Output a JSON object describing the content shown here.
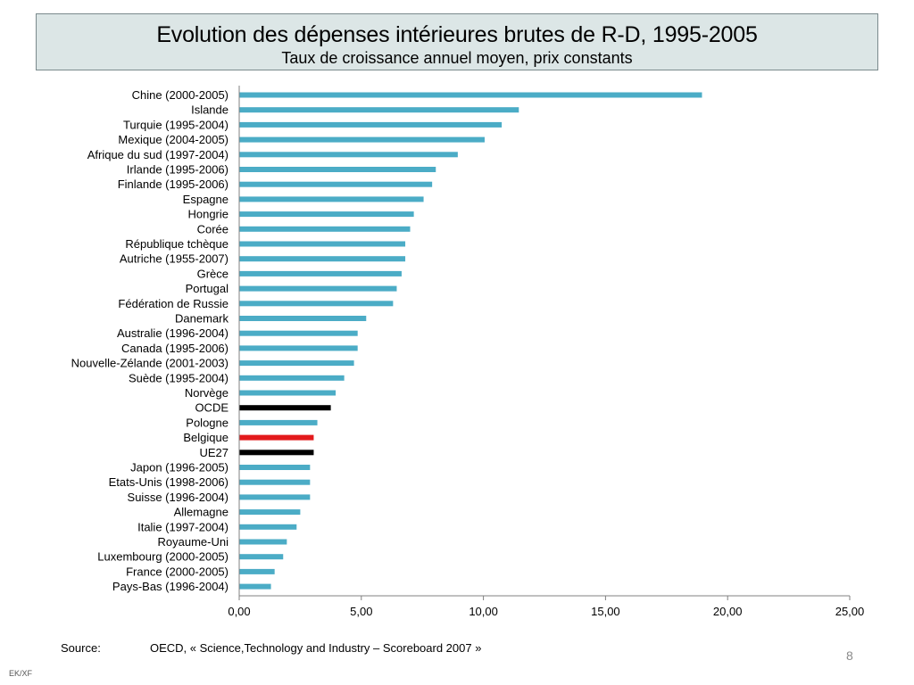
{
  "chart_data": {
    "type": "bar",
    "orientation": "horizontal",
    "title": "Evolution des dépenses intérieures brutes de R-D, 1995-2005",
    "subtitle": "Taux de croissance annuel moyen, prix constants",
    "categories": [
      "Chine (2000-2005)",
      "Islande",
      "Turquie (1995-2004)",
      "Mexique (2004-2005)",
      "Afrique du sud (1997-2004)",
      "Irlande (1995-2006)",
      "Finlande (1995-2006)",
      "Espagne",
      "Hongrie",
      "Corée",
      "République tchèque",
      "Autriche (1955-2007)",
      "Grèce",
      "Portugal",
      "Fédération de Russie",
      "Danemark",
      "Australie (1996-2004)",
      "Canada (1995-2006)",
      "Nouvelle-Zélande (2001-2003)",
      "Suède (1995-2004)",
      "Norvège",
      "OCDE",
      "Pologne",
      "Belgique",
      "UE27",
      "Japon (1996-2005)",
      "Etats-Unis (1998-2006)",
      "Suisse (1996-2004)",
      "Allemagne",
      "Italie (1997-2004)",
      "Royaume-Uni",
      "Luxembourg (2000-2005)",
      "France (2000-2005)",
      "Pays-Bas (1996-2004)"
    ],
    "values": [
      18.95,
      11.45,
      10.75,
      10.05,
      8.95,
      8.05,
      7.9,
      7.55,
      7.15,
      7.0,
      6.8,
      6.8,
      6.65,
      6.45,
      6.3,
      5.2,
      4.85,
      4.85,
      4.7,
      4.3,
      3.95,
      3.75,
      3.2,
      3.05,
      3.05,
      2.9,
      2.9,
      2.9,
      2.5,
      2.35,
      1.95,
      1.8,
      1.45,
      1.3
    ],
    "xlim": [
      0,
      25
    ],
    "xticks": [
      "0,00",
      "5,00",
      "10,00",
      "15,00",
      "20,00",
      "25,00"
    ],
    "xtick_values": [
      0,
      5,
      10,
      15,
      20,
      25
    ],
    "grid": false,
    "colors": {
      "default": "#4bacc6",
      "highlight": {
        "OCDE": "#000000",
        "UE27": "#000000",
        "Belgique": "#e31a1c"
      }
    }
  },
  "footer": {
    "source_label": "Source:",
    "source_text": "OECD, « Science,Technology and Industry – Scoreboard 2007 »",
    "page_number": "8",
    "author_tag": "EK/XF"
  }
}
